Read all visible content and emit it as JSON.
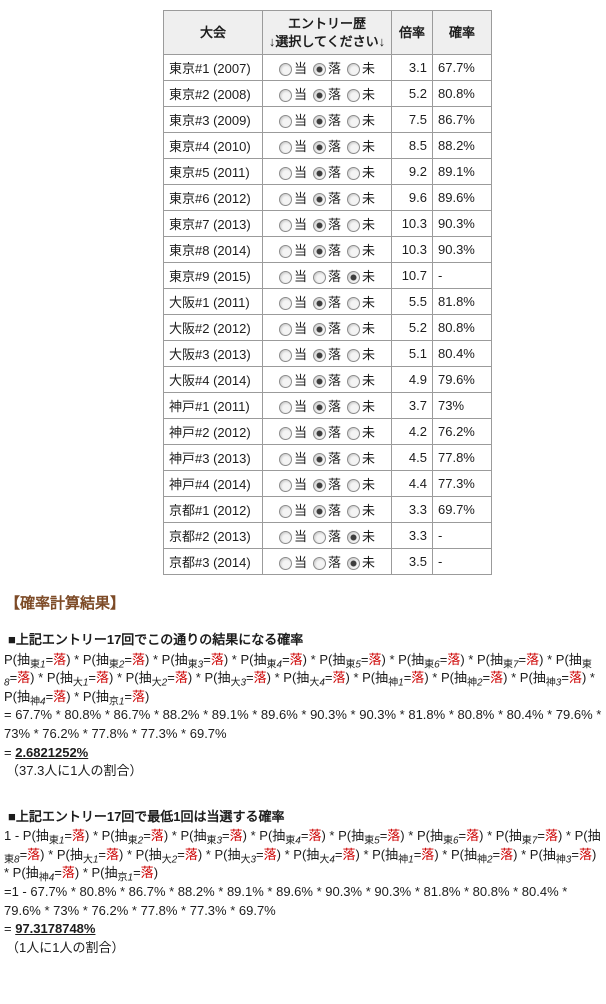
{
  "table": {
    "headers": {
      "event": "大会",
      "entry_line1": "エントリー歴",
      "entry_line2": "↓選択してください↓",
      "odds": "倍率",
      "probability": "確率"
    },
    "radio_options": [
      "当",
      "落",
      "未"
    ],
    "rows": [
      {
        "event": "東京#1 (2007)",
        "selected": "落",
        "odds": "3.1",
        "probability": "67.7%"
      },
      {
        "event": "東京#2 (2008)",
        "selected": "落",
        "odds": "5.2",
        "probability": "80.8%"
      },
      {
        "event": "東京#3 (2009)",
        "selected": "落",
        "odds": "7.5",
        "probability": "86.7%"
      },
      {
        "event": "東京#4 (2010)",
        "selected": "落",
        "odds": "8.5",
        "probability": "88.2%"
      },
      {
        "event": "東京#5 (2011)",
        "selected": "落",
        "odds": "9.2",
        "probability": "89.1%"
      },
      {
        "event": "東京#6 (2012)",
        "selected": "落",
        "odds": "9.6",
        "probability": "89.6%"
      },
      {
        "event": "東京#7 (2013)",
        "selected": "落",
        "odds": "10.3",
        "probability": "90.3%"
      },
      {
        "event": "東京#8 (2014)",
        "selected": "落",
        "odds": "10.3",
        "probability": "90.3%"
      },
      {
        "event": "東京#9 (2015)",
        "selected": "未",
        "odds": "10.7",
        "probability": "-"
      },
      {
        "event": "大阪#1 (2011)",
        "selected": "落",
        "odds": "5.5",
        "probability": "81.8%"
      },
      {
        "event": "大阪#2 (2012)",
        "selected": "落",
        "odds": "5.2",
        "probability": "80.8%"
      },
      {
        "event": "大阪#3 (2013)",
        "selected": "落",
        "odds": "5.1",
        "probability": "80.4%"
      },
      {
        "event": "大阪#4 (2014)",
        "selected": "落",
        "odds": "4.9",
        "probability": "79.6%"
      },
      {
        "event": "神戸#1 (2011)",
        "selected": "落",
        "odds": "3.7",
        "probability": "73%"
      },
      {
        "event": "神戸#2 (2012)",
        "selected": "落",
        "odds": "4.2",
        "probability": "76.2%"
      },
      {
        "event": "神戸#3 (2013)",
        "selected": "落",
        "odds": "4.5",
        "probability": "77.8%"
      },
      {
        "event": "神戸#4 (2014)",
        "selected": "落",
        "odds": "4.4",
        "probability": "77.3%"
      },
      {
        "event": "京都#1 (2012)",
        "selected": "落",
        "odds": "3.3",
        "probability": "69.7%"
      },
      {
        "event": "京都#2 (2013)",
        "selected": "未",
        "odds": "3.3",
        "probability": "-"
      },
      {
        "event": "京都#3 (2014)",
        "selected": "未",
        "odds": "3.5",
        "probability": "-"
      }
    ]
  },
  "results": {
    "heading": "【確率計算結果】",
    "accent_color": "#7d4b27",
    "fail_color": "#cc0000",
    "term_parts": {
      "open": "P(抽",
      "equals": "=",
      "fail": "落",
      "close": ")",
      "separator": " * "
    },
    "terms": [
      {
        "place": "東",
        "num": "1"
      },
      {
        "place": "東",
        "num": "2"
      },
      {
        "place": "東",
        "num": "3"
      },
      {
        "place": "東",
        "num": "4"
      },
      {
        "place": "東",
        "num": "5"
      },
      {
        "place": "東",
        "num": "6"
      },
      {
        "place": "東",
        "num": "7"
      },
      {
        "place": "東",
        "num": "8"
      },
      {
        "place": "大",
        "num": "1"
      },
      {
        "place": "大",
        "num": "2"
      },
      {
        "place": "大",
        "num": "3"
      },
      {
        "place": "大",
        "num": "4"
      },
      {
        "place": "神",
        "num": "1"
      },
      {
        "place": "神",
        "num": "2"
      },
      {
        "place": "神",
        "num": "3"
      },
      {
        "place": "神",
        "num": "4"
      },
      {
        "place": "京",
        "num": "1"
      }
    ],
    "sections": [
      {
        "title": "■上記エントリー17回でこの通りの結果になる確率",
        "formula_prefix": "",
        "calc_line": "= 67.7% * 80.8% * 86.7% * 88.2% * 89.1% * 89.6% * 90.3% * 90.3% * 81.8% * 80.8% * 80.4% * 79.6% * 73% * 76.2% * 77.8% * 77.3% * 69.7%",
        "result_prefix": "= ",
        "result": "2.6821252%",
        "note": "（37.3人に1人の割合）"
      },
      {
        "title": "■上記エントリー17回で最低1回は当選する確率",
        "formula_prefix": "1 - ",
        "calc_line": "=1 - 67.7% * 80.8% * 86.7% * 88.2% * 89.1% * 89.6% * 90.3% * 90.3% * 81.8% * 80.8% * 80.4% * 79.6% * 73% * 76.2% * 77.8% * 77.3% * 69.7%",
        "result_prefix": "= ",
        "result": "97.3178748%",
        "note": "（1人に1人の割合）"
      }
    ]
  }
}
